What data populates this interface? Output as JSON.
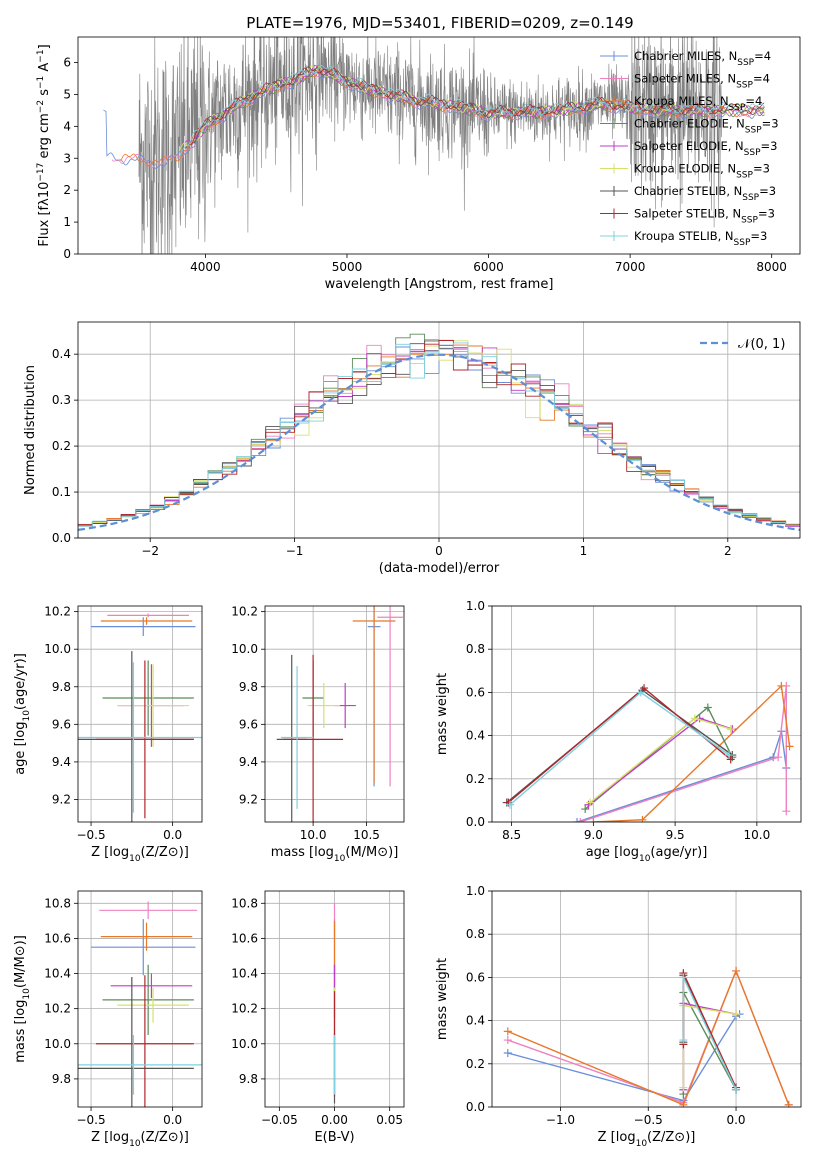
{
  "figure_title": "PLATE=1976, MJD=53401, FIBERID=0209, z=0.149",
  "legend_labels": [
    {
      "name": "Chabrier MILES",
      "sub": "SSP",
      "n": "=4"
    },
    {
      "name": "Salpeter MILES",
      "sub": "SSP",
      "n": "=4"
    },
    {
      "name": "Kroupa MILES",
      "sub": "SSP",
      "n": "=4"
    },
    {
      "name": "Chabrier ELODIE",
      "sub": "SSP",
      "n": "=3"
    },
    {
      "name": "Salpeter ELODIE",
      "sub": "SSP",
      "n": "=3"
    },
    {
      "name": "Kroupa ELODIE",
      "sub": "SSP",
      "n": "=3"
    },
    {
      "name": "Chabrier STELIB",
      "sub": "SSP",
      "n": "=3"
    },
    {
      "name": "Salpeter STELIB",
      "sub": "SSP",
      "n": "=3"
    },
    {
      "name": "Kroupa STELIB",
      "sub": "SSP",
      "n": "=3"
    }
  ],
  "series_colors": [
    "#6a8fd8",
    "#ee82c0",
    "#e8792a",
    "#5b8c5a",
    "#c03fc8",
    "#d8e06c",
    "#555555",
    "#b0282c",
    "#7fd0e0"
  ],
  "chart_data": [
    {
      "id": "spectrum",
      "type": "line",
      "xlabel": "wavelength [Angstrom, rest frame]",
      "ylabel": "Flux [fλ10^-17 erg cm^-2 s^-1 A^-1]",
      "xlim": [
        3100,
        8200
      ],
      "ylim": [
        0,
        6.8
      ],
      "xticks": [
        4000,
        5000,
        6000,
        7000,
        8000
      ],
      "yticks": [
        0,
        1,
        2,
        3,
        4,
        5,
        6
      ],
      "grid": false,
      "legend": "right",
      "data_color": "#808080",
      "data_range": [
        3530,
        7650
      ],
      "model_start": [
        3280,
        3900
      ],
      "continuum": [
        [
          3300,
          3.1
        ],
        [
          3550,
          3.0
        ],
        [
          3700,
          2.9
        ],
        [
          3800,
          3.1
        ],
        [
          3900,
          3.5
        ],
        [
          4000,
          4.0
        ],
        [
          4200,
          4.6
        ],
        [
          4400,
          5.1
        ],
        [
          4600,
          5.4
        ],
        [
          4700,
          5.6
        ],
        [
          4800,
          5.8
        ],
        [
          5000,
          5.4
        ],
        [
          5200,
          5.1
        ],
        [
          5500,
          4.8
        ],
        [
          5800,
          4.6
        ],
        [
          6000,
          4.4
        ],
        [
          6200,
          4.45
        ],
        [
          6400,
          4.45
        ],
        [
          6600,
          4.55
        ],
        [
          6800,
          4.7
        ],
        [
          7000,
          4.6
        ],
        [
          7200,
          4.5
        ],
        [
          7500,
          4.5
        ]
      ]
    },
    {
      "id": "residuals",
      "type": "histogram",
      "xlabel": "(data-model)/error",
      "ylabel": "Normed distribution",
      "xlim": [
        -2.5,
        2.5
      ],
      "ylim": [
        0,
        0.47
      ],
      "xticks": [
        -2,
        -1,
        0,
        1,
        2
      ],
      "yticks": [
        0.0,
        0.1,
        0.2,
        0.3,
        0.4
      ],
      "grid": true,
      "legend": "top-right",
      "reference_label": "𝒩(0, 1)",
      "reference_color": "#5b8fd6",
      "bin_width": 0.1
    },
    {
      "id": "age_vs_Z",
      "type": "errorbar",
      "xlabel": "Z [log10(Z/Z⊙)]",
      "ylabel": "age  [log10(age/yr)]",
      "xlim": [
        -0.58,
        0.18
      ],
      "ylim": [
        9.08,
        10.23
      ],
      "xticks": [
        -0.5,
        0.0
      ],
      "yticks": [
        9.2,
        9.4,
        9.6,
        9.8,
        10.0,
        10.2
      ],
      "grid": true,
      "points": [
        {
          "x": -0.18,
          "y": 10.12,
          "xerr": 0.32,
          "yerr": 0.05
        },
        {
          "x": -0.15,
          "y": 10.18,
          "xerr": 0.25,
          "yerr": 0.01
        },
        {
          "x": -0.16,
          "y": 10.15,
          "xerr": 0.28,
          "yerr": 0.02
        },
        {
          "x": -0.15,
          "y": 9.74,
          "xerr": 0.28,
          "yerr": 0.2
        },
        {
          "x": -0.13,
          "y": 9.7,
          "xerr": 0.2,
          "yerr": 0.22
        },
        {
          "x": -0.12,
          "y": 9.7,
          "xerr": 0.22,
          "yerr": 0.22
        },
        {
          "x": -0.25,
          "y": 9.52,
          "xerr": 0.38,
          "yerr": 0.47
        },
        {
          "x": -0.17,
          "y": 9.52,
          "xerr": 0.3,
          "yerr": 0.42
        },
        {
          "x": -0.24,
          "y": 9.53,
          "xerr": 0.42,
          "yerr": 0.4
        }
      ]
    },
    {
      "id": "age_vs_mass",
      "type": "errorbar",
      "xlabel": "mass [log10(M/M⊙)]",
      "ylabel": "",
      "xlim": [
        9.55,
        10.85
      ],
      "ylim": [
        9.08,
        10.23
      ],
      "xticks": [
        10.0,
        10.5
      ],
      "yticks": [
        9.2,
        9.4,
        9.6,
        9.8,
        10.0,
        10.2
      ],
      "grid": true,
      "points": [
        {
          "x": 10.57,
          "y": 10.12,
          "xerr": 0.06,
          "yerr": 0.85
        },
        {
          "x": 10.72,
          "y": 10.17,
          "xerr": 0.12,
          "yerr": 0.9
        },
        {
          "x": 10.57,
          "y": 10.15,
          "xerr": 0.2,
          "yerr": 0.86
        },
        {
          "x": 10.0,
          "y": 9.74,
          "xerr": 0.1,
          "yerr": 0.2
        },
        {
          "x": 10.3,
          "y": 9.7,
          "xerr": 0.1,
          "yerr": 0.12
        },
        {
          "x": 10.1,
          "y": 9.7,
          "xerr": 0.15,
          "yerr": 0.12
        },
        {
          "x": 9.8,
          "y": 9.52,
          "xerr": 0.14,
          "yerr": 0.45
        },
        {
          "x": 10.0,
          "y": 9.52,
          "xerr": 0.28,
          "yerr": 0.45
        },
        {
          "x": 9.85,
          "y": 9.53,
          "xerr": 0.15,
          "yerr": 0.38
        }
      ]
    },
    {
      "id": "massweight_vs_age",
      "type": "line",
      "xlabel": "age  [log10(age/yr)]",
      "ylabel": "mass weight",
      "xlim": [
        8.38,
        10.27
      ],
      "ylim": [
        0.0,
        1.0
      ],
      "xticks": [
        8.5,
        9.0,
        9.5,
        10.0
      ],
      "yticks": [
        0.0,
        0.2,
        0.4,
        0.6,
        0.8,
        1.0
      ],
      "grid": true,
      "series": [
        {
          "x": [
            8.9,
            10.1,
            10.15,
            10.18
          ],
          "y": [
            0.0,
            0.3,
            0.42,
            0.25
          ]
        },
        {
          "x": [
            8.92,
            10.13,
            10.18,
            10.18
          ],
          "y": [
            0.0,
            0.3,
            0.63,
            0.05
          ]
        },
        {
          "x": [
            9.0,
            9.3,
            10.15,
            10.2
          ],
          "y": [
            0.0,
            0.01,
            0.63,
            0.35
          ]
        },
        {
          "x": [
            8.95,
            9.7,
            9.85
          ],
          "y": [
            0.06,
            0.53,
            0.3
          ]
        },
        {
          "x": [
            8.97,
            9.65,
            9.85
          ],
          "y": [
            0.08,
            0.48,
            0.43
          ]
        },
        {
          "x": [
            8.98,
            9.62,
            9.84
          ],
          "y": [
            0.09,
            0.48,
            0.43
          ]
        },
        {
          "x": [
            8.47,
            9.3,
            9.85
          ],
          "y": [
            0.09,
            0.61,
            0.31
          ]
        },
        {
          "x": [
            8.48,
            9.31,
            9.84
          ],
          "y": [
            0.09,
            0.62,
            0.29
          ]
        },
        {
          "x": [
            8.49,
            9.29,
            9.83
          ],
          "y": [
            0.08,
            0.6,
            0.31
          ]
        }
      ]
    },
    {
      "id": "mass_vs_Z",
      "type": "errorbar",
      "xlabel": "Z [log10(Z/Z⊙)]",
      "ylabel": "mass [log10(M/M⊙)]",
      "xlim": [
        -0.58,
        0.18
      ],
      "ylim": [
        9.64,
        10.87
      ],
      "xticks": [
        -0.5,
        0.0
      ],
      "yticks": [
        9.8,
        10.0,
        10.2,
        10.4,
        10.6,
        10.8
      ],
      "grid": true,
      "points": [
        {
          "x": -0.18,
          "y": 10.55,
          "xerr": 0.32,
          "yerr": 0.16
        },
        {
          "x": -0.15,
          "y": 10.76,
          "xerr": 0.3,
          "yerr": 0.05
        },
        {
          "x": -0.16,
          "y": 10.61,
          "xerr": 0.28,
          "yerr": 0.08
        },
        {
          "x": -0.15,
          "y": 10.25,
          "xerr": 0.28,
          "yerr": 0.2
        },
        {
          "x": -0.13,
          "y": 10.33,
          "xerr": 0.25,
          "yerr": 0.07
        },
        {
          "x": -0.12,
          "y": 10.22,
          "xerr": 0.22,
          "yerr": 0.1
        },
        {
          "x": -0.25,
          "y": 9.86,
          "xerr": 0.38,
          "yerr": 0.52
        },
        {
          "x": -0.17,
          "y": 10.0,
          "xerr": 0.3,
          "yerr": 0.39
        },
        {
          "x": -0.24,
          "y": 9.88,
          "xerr": 0.42,
          "yerr": 0.17
        }
      ]
    },
    {
      "id": "mass_vs_ebv",
      "type": "errorbar",
      "xlabel": "E(B-V)",
      "ylabel": "",
      "xlim": [
        -0.063,
        0.063
      ],
      "ylim": [
        9.64,
        10.87
      ],
      "xticks": [
        -0.05,
        0.0,
        0.05
      ],
      "yticks": [
        9.8,
        10.0,
        10.2,
        10.4,
        10.6,
        10.8
      ],
      "grid": true,
      "points": [
        {
          "x": 0.0,
          "y": 10.55,
          "xerr": 0.0,
          "yerr": 0.16
        },
        {
          "x": 0.0,
          "y": 10.7,
          "xerr": 0.0,
          "yerr": 0.1
        },
        {
          "x": 0.0,
          "y": 10.5,
          "xerr": 0.0,
          "yerr": 0.2
        },
        {
          "x": 0.0,
          "y": 10.25,
          "xerr": 0.0,
          "yerr": 0.2
        },
        {
          "x": 0.0,
          "y": 10.3,
          "xerr": 0.0,
          "yerr": 0.15
        },
        {
          "x": 0.0,
          "y": 10.2,
          "xerr": 0.0,
          "yerr": 0.12
        },
        {
          "x": 0.0,
          "y": 9.86,
          "xerr": 0.0,
          "yerr": 0.2
        },
        {
          "x": 0.0,
          "y": 10.0,
          "xerr": 0.0,
          "yerr": 0.3
        },
        {
          "x": 0.0,
          "y": 9.88,
          "xerr": 0.0,
          "yerr": 0.17
        }
      ]
    },
    {
      "id": "massweight_vs_Z",
      "type": "line",
      "xlabel": "Z [log10(Z/Z⊙)]",
      "ylabel": "mass weight",
      "xlim": [
        -1.39,
        0.37
      ],
      "ylim": [
        0.0,
        1.0
      ],
      "xticks": [
        -1.0,
        -0.5,
        0.0
      ],
      "yticks": [
        0.0,
        0.2,
        0.4,
        0.6,
        0.8,
        1.0
      ],
      "grid": true,
      "series": [
        {
          "x": [
            -1.3,
            -0.3,
            0.0,
            0.02
          ],
          "y": [
            0.25,
            0.03,
            0.42,
            0.43
          ]
        },
        {
          "x": [
            -1.3,
            -0.3,
            0.0,
            0.3
          ],
          "y": [
            0.31,
            0.02,
            0.63,
            0.01
          ]
        },
        {
          "x": [
            -1.3,
            -0.3,
            0.0,
            0.3
          ],
          "y": [
            0.35,
            0.01,
            0.63,
            0.01
          ]
        },
        {
          "x": [
            -0.3,
            -0.3,
            0.0
          ],
          "y": [
            0.06,
            0.53,
            0.08
          ]
        },
        {
          "x": [
            -0.3,
            -0.3,
            0.0
          ],
          "y": [
            0.08,
            0.48,
            0.43
          ]
        },
        {
          "x": [
            -0.3,
            -0.3,
            0.0
          ],
          "y": [
            0.09,
            0.47,
            0.43
          ]
        },
        {
          "x": [
            -0.3,
            -0.3,
            0.0
          ],
          "y": [
            0.3,
            0.61,
            0.08
          ]
        },
        {
          "x": [
            -0.3,
            -0.3,
            0.0
          ],
          "y": [
            0.29,
            0.62,
            0.09
          ]
        },
        {
          "x": [
            -0.3,
            -0.3,
            0.0
          ],
          "y": [
            0.31,
            0.6,
            0.08
          ]
        }
      ]
    }
  ]
}
